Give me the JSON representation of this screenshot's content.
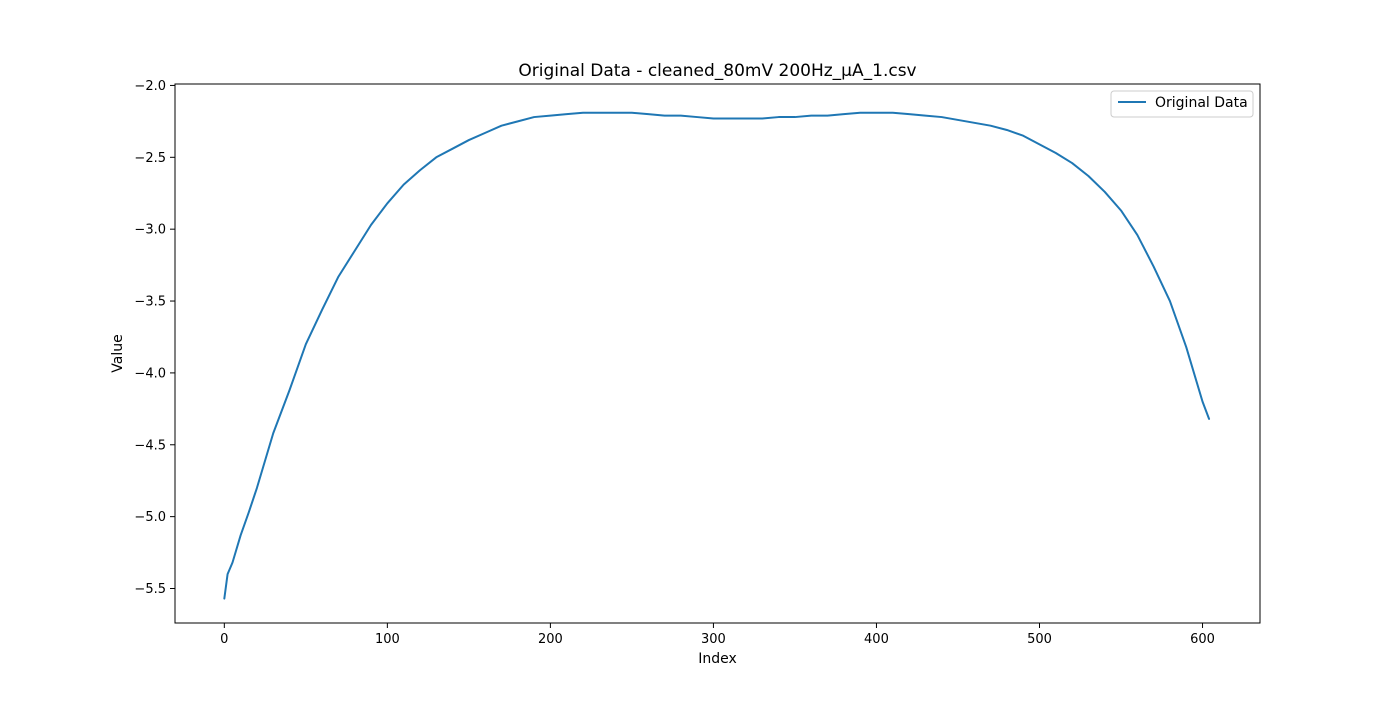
{
  "chart_data": {
    "type": "line",
    "title": "Original Data - cleaned_80mV 200Hz_µA_1.csv",
    "xlabel": "Index",
    "ylabel": "Value",
    "xlim": [
      -30.25,
      635.25
    ],
    "ylim": [
      -5.74,
      -1.99
    ],
    "xticks": [
      0,
      100,
      200,
      300,
      400,
      500,
      600
    ],
    "xtick_labels": [
      "0",
      "100",
      "200",
      "300",
      "400",
      "500",
      "600"
    ],
    "yticks": [
      -5.5,
      -5.0,
      -4.5,
      -4.0,
      -3.5,
      -3.0,
      -2.5,
      -2.0
    ],
    "ytick_labels": [
      "−5.5",
      "−5.0",
      "−4.5",
      "−4.0",
      "−3.5",
      "−3.0",
      "−2.5",
      "−2.0"
    ],
    "grid": false,
    "legend": {
      "location": "upper right"
    },
    "series": [
      {
        "name": "Original Data",
        "color": "#1f77b4",
        "x": [
          0,
          2,
          5,
          10,
          15,
          20,
          30,
          40,
          50,
          60,
          70,
          80,
          90,
          100,
          110,
          120,
          130,
          140,
          150,
          160,
          170,
          180,
          190,
          200,
          210,
          220,
          230,
          240,
          250,
          260,
          270,
          280,
          290,
          300,
          310,
          320,
          330,
          340,
          350,
          360,
          370,
          380,
          390,
          400,
          410,
          420,
          430,
          440,
          450,
          460,
          470,
          480,
          490,
          500,
          510,
          520,
          530,
          540,
          550,
          560,
          570,
          580,
          590,
          600,
          604
        ],
        "y": [
          -5.57,
          -5.4,
          -5.32,
          -5.13,
          -4.97,
          -4.8,
          -4.42,
          -4.12,
          -3.8,
          -3.56,
          -3.33,
          -3.15,
          -2.97,
          -2.82,
          -2.69,
          -2.59,
          -2.5,
          -2.44,
          -2.38,
          -2.33,
          -2.28,
          -2.25,
          -2.22,
          -2.21,
          -2.2,
          -2.19,
          -2.19,
          -2.19,
          -2.19,
          -2.2,
          -2.21,
          -2.21,
          -2.22,
          -2.23,
          -2.23,
          -2.23,
          -2.23,
          -2.22,
          -2.22,
          -2.21,
          -2.21,
          -2.2,
          -2.19,
          -2.19,
          -2.19,
          -2.2,
          -2.21,
          -2.22,
          -2.24,
          -2.26,
          -2.28,
          -2.31,
          -2.35,
          -2.41,
          -2.47,
          -2.54,
          -2.63,
          -2.74,
          -2.87,
          -3.04,
          -3.26,
          -3.5,
          -3.82,
          -4.2,
          -4.32
        ]
      }
    ]
  }
}
